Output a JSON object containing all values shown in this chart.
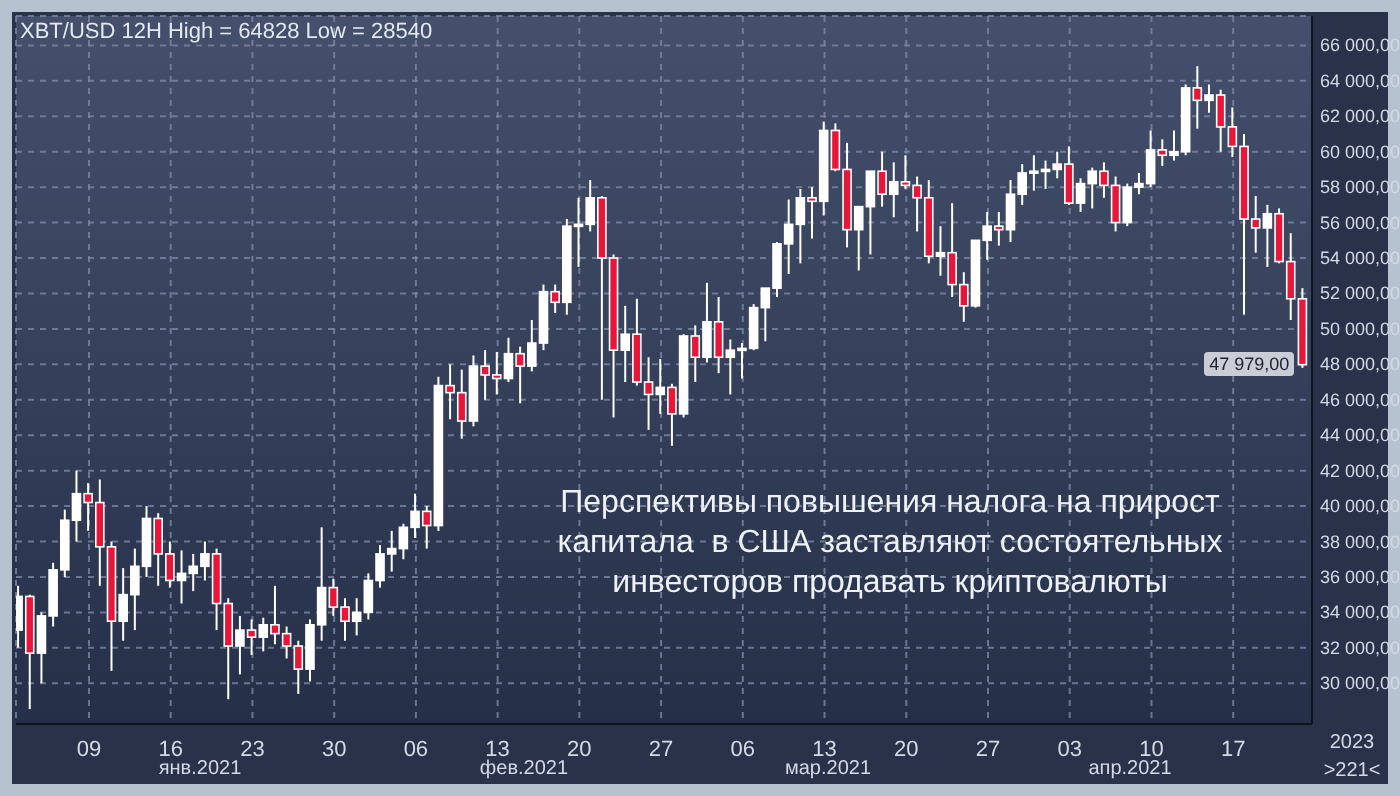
{
  "chart_data": {
    "type": "candlestick",
    "title": "XBT/USD 12H High = 64828 Low = 28540",
    "x": [
      "2021-01-03",
      "2021-01-04",
      "2021-01-05",
      "2021-01-06",
      "2021-01-07",
      "2021-01-08",
      "2021-01-09",
      "2021-01-10",
      "2021-01-11",
      "2021-01-12",
      "2021-01-13",
      "2021-01-14",
      "2021-01-15",
      "2021-01-16",
      "2021-01-17",
      "2021-01-18",
      "2021-01-19",
      "2021-01-20",
      "2021-01-21",
      "2021-01-22",
      "2021-01-23",
      "2021-01-24",
      "2021-01-25",
      "2021-01-26",
      "2021-01-27",
      "2021-01-28",
      "2021-01-29",
      "2021-01-30",
      "2021-01-31",
      "2021-02-01",
      "2021-02-02",
      "2021-02-03",
      "2021-02-04",
      "2021-02-05",
      "2021-02-06",
      "2021-02-07",
      "2021-02-08",
      "2021-02-09",
      "2021-02-10",
      "2021-02-11",
      "2021-02-12",
      "2021-02-13",
      "2021-02-14",
      "2021-02-15",
      "2021-02-16",
      "2021-02-17",
      "2021-02-18",
      "2021-02-19",
      "2021-02-20",
      "2021-02-21",
      "2021-02-22",
      "2021-02-23",
      "2021-02-24",
      "2021-02-25",
      "2021-02-26",
      "2021-02-27",
      "2021-02-28",
      "2021-03-01",
      "2021-03-02",
      "2021-03-03",
      "2021-03-04",
      "2021-03-05",
      "2021-03-06",
      "2021-03-07",
      "2021-03-08",
      "2021-03-09",
      "2021-03-10",
      "2021-03-11",
      "2021-03-12",
      "2021-03-13",
      "2021-03-14",
      "2021-03-15",
      "2021-03-16",
      "2021-03-17",
      "2021-03-18",
      "2021-03-19",
      "2021-03-20",
      "2021-03-21",
      "2021-03-22",
      "2021-03-23",
      "2021-03-24",
      "2021-03-25",
      "2021-03-26",
      "2021-03-27",
      "2021-03-28",
      "2021-03-29",
      "2021-03-30",
      "2021-03-31",
      "2021-04-01",
      "2021-04-02",
      "2021-04-03",
      "2021-04-04",
      "2021-04-05",
      "2021-04-06",
      "2021-04-07",
      "2021-04-08",
      "2021-04-09",
      "2021-04-10",
      "2021-04-11",
      "2021-04-12",
      "2021-04-13",
      "2021-04-14",
      "2021-04-15",
      "2021-04-16",
      "2021-04-17",
      "2021-04-18",
      "2021-04-19",
      "2021-04-20",
      "2021-04-21",
      "2021-04-22",
      "2021-04-23"
    ],
    "ohlc": [
      [
        33000,
        35500,
        32000,
        34900
      ],
      [
        34900,
        35000,
        28540,
        31700
      ],
      [
        31700,
        34000,
        30000,
        33800
      ],
      [
        33800,
        36800,
        33200,
        36400
      ],
      [
        36400,
        39800,
        36000,
        39200
      ],
      [
        39200,
        42000,
        38000,
        40700
      ],
      [
        40700,
        41300,
        38600,
        40200
      ],
      [
        40200,
        41500,
        35500,
        37700
      ],
      [
        37700,
        38000,
        30700,
        33500
      ],
      [
        33500,
        36500,
        32400,
        35000
      ],
      [
        35000,
        37600,
        33000,
        36600
      ],
      [
        36600,
        40000,
        36000,
        39300
      ],
      [
        39300,
        39600,
        35500,
        37300
      ],
      [
        37300,
        38000,
        35400,
        35800
      ],
      [
        35800,
        37500,
        34500,
        36200
      ],
      [
        36200,
        37300,
        35200,
        36600
      ],
      [
        36600,
        38000,
        35800,
        37300
      ],
      [
        37300,
        37600,
        33000,
        34500
      ],
      [
        34500,
        34800,
        29100,
        32100
      ],
      [
        32100,
        33800,
        30500,
        33000
      ],
      [
        33000,
        33600,
        31600,
        32600
      ],
      [
        32600,
        33700,
        31800,
        33300
      ],
      [
        33300,
        35500,
        32200,
        32800
      ],
      [
        32800,
        33200,
        31400,
        32100
      ],
      [
        32100,
        32400,
        29400,
        30800
      ],
      [
        30800,
        33600,
        30100,
        33300
      ],
      [
        33300,
        38800,
        32400,
        35400
      ],
      [
        35400,
        35900,
        33800,
        34300
      ],
      [
        34300,
        34800,
        32400,
        33500
      ],
      [
        33500,
        34800,
        32700,
        34000
      ],
      [
        34000,
        36200,
        33600,
        35800
      ],
      [
        35800,
        37800,
        35400,
        37300
      ],
      [
        37300,
        38600,
        36300,
        37600
      ],
      [
        37600,
        39000,
        37000,
        38800
      ],
      [
        38800,
        40700,
        38200,
        39700
      ],
      [
        39700,
        40000,
        37600,
        38900
      ],
      [
        38900,
        47300,
        38600,
        46800
      ],
      [
        46800,
        48000,
        44900,
        46400
      ],
      [
        46400,
        47700,
        43800,
        44800
      ],
      [
        44800,
        48500,
        44500,
        47900
      ],
      [
        47900,
        48800,
        46000,
        47400
      ],
      [
        47400,
        48700,
        46300,
        47200
      ],
      [
        47200,
        49500,
        47000,
        48600
      ],
      [
        48600,
        49000,
        45800,
        47900
      ],
      [
        47900,
        50500,
        47600,
        49200
      ],
      [
        49200,
        52500,
        48800,
        52100
      ],
      [
        52100,
        52500,
        50900,
        51500
      ],
      [
        51500,
        56200,
        50800,
        55800
      ],
      [
        55800,
        57400,
        53500,
        55900
      ],
      [
        55900,
        58400,
        55500,
        57400
      ],
      [
        57400,
        57500,
        46000,
        54000
      ],
      [
        54000,
        54200,
        45000,
        48800
      ],
      [
        48800,
        51300,
        47000,
        49700
      ],
      [
        49700,
        51700,
        46800,
        47000
      ],
      [
        47000,
        48400,
        44300,
        46300
      ],
      [
        46300,
        48300,
        45200,
        46700
      ],
      [
        46700,
        46900,
        43400,
        45200
      ],
      [
        45200,
        49700,
        45000,
        49600
      ],
      [
        49600,
        50200,
        47000,
        48400
      ],
      [
        48400,
        52600,
        48100,
        50400
      ],
      [
        50400,
        51800,
        47500,
        48400
      ],
      [
        48400,
        49400,
        46300,
        48800
      ],
      [
        48800,
        49200,
        47200,
        48900
      ],
      [
        48900,
        51400,
        48800,
        51200
      ],
      [
        51200,
        52300,
        49300,
        52300
      ],
      [
        52300,
        54900,
        51800,
        54800
      ],
      [
        54800,
        57300,
        53100,
        55900
      ],
      [
        55900,
        57900,
        53700,
        57400
      ],
      [
        57400,
        58000,
        55100,
        57200
      ],
      [
        57200,
        61700,
        56400,
        61200
      ],
      [
        61200,
        61600,
        58900,
        59000
      ],
      [
        59000,
        60500,
        54600,
        55600
      ],
      [
        55600,
        56900,
        53300,
        56900
      ],
      [
        56900,
        58900,
        54200,
        58900
      ],
      [
        58900,
        60000,
        56900,
        57600
      ],
      [
        57600,
        59400,
        56300,
        58300
      ],
      [
        58300,
        59800,
        57900,
        58100
      ],
      [
        58100,
        58600,
        55500,
        57400
      ],
      [
        57400,
        58400,
        53700,
        54100
      ],
      [
        54100,
        55800,
        53000,
        54300
      ],
      [
        54300,
        57100,
        51800,
        52500
      ],
      [
        52500,
        53200,
        50400,
        51300
      ],
      [
        51300,
        55000,
        51200,
        55000
      ],
      [
        55000,
        56600,
        53900,
        55800
      ],
      [
        55800,
        56600,
        54700,
        55600
      ],
      [
        55600,
        58400,
        54900,
        57600
      ],
      [
        57600,
        59300,
        57000,
        58800
      ],
      [
        58800,
        59800,
        57800,
        58900
      ],
      [
        58900,
        59500,
        57900,
        59000
      ],
      [
        59000,
        60000,
        58500,
        59300
      ],
      [
        59300,
        60300,
        57000,
        57100
      ],
      [
        57100,
        58500,
        56600,
        58200
      ],
      [
        58200,
        59100,
        56800,
        58900
      ],
      [
        58900,
        59400,
        57400,
        58100
      ],
      [
        58100,
        58600,
        55500,
        56000
      ],
      [
        56000,
        58200,
        55800,
        58000
      ],
      [
        58000,
        58800,
        57600,
        58200
      ],
      [
        58200,
        61200,
        58000,
        60100
      ],
      [
        60100,
        60700,
        59200,
        59800
      ],
      [
        59800,
        61200,
        59500,
        60000
      ],
      [
        60000,
        63800,
        59800,
        63600
      ],
      [
        63600,
        64828,
        61300,
        62900
      ],
      [
        62900,
        63800,
        62200,
        63200
      ],
      [
        63200,
        63500,
        60000,
        61400
      ],
      [
        61400,
        62500,
        59700,
        60300
      ],
      [
        60300,
        61000,
        50800,
        56200
      ],
      [
        56200,
        57500,
        54300,
        55700
      ],
      [
        55700,
        57000,
        53500,
        56500
      ],
      [
        56500,
        56800,
        53700,
        53800
      ],
      [
        53800,
        55400,
        50500,
        51700
      ],
      [
        51700,
        52300,
        47800,
        47979
      ]
    ],
    "colors": [
      "#ffffff",
      "#e8173a",
      "#ffffff",
      "#ffffff",
      "#ffffff",
      "#ffffff",
      "#e8173a",
      "#e8173a",
      "#e8173a",
      "#ffffff",
      "#ffffff",
      "#ffffff",
      "#e8173a",
      "#e8173a",
      "#ffffff",
      "#ffffff",
      "#ffffff",
      "#e8173a",
      "#e8173a",
      "#ffffff",
      "#e8173a",
      "#ffffff",
      "#e8173a",
      "#e8173a",
      "#e8173a",
      "#ffffff",
      "#ffffff",
      "#e8173a",
      "#e8173a",
      "#ffffff",
      "#ffffff",
      "#ffffff",
      "#ffffff",
      "#ffffff",
      "#ffffff",
      "#e8173a",
      "#ffffff",
      "#e8173a",
      "#e8173a",
      "#ffffff",
      "#e8173a",
      "#e8173a",
      "#ffffff",
      "#e8173a",
      "#ffffff",
      "#ffffff",
      "#e8173a",
      "#ffffff",
      "#ffffff",
      "#ffffff",
      "#e8173a",
      "#e8173a",
      "#ffffff",
      "#e8173a",
      "#e8173a",
      "#ffffff",
      "#e8173a",
      "#ffffff",
      "#e8173a",
      "#ffffff",
      "#e8173a",
      "#ffffff",
      "#ffffff",
      "#ffffff",
      "#ffffff",
      "#ffffff",
      "#ffffff",
      "#ffffff",
      "#e8173a",
      "#ffffff",
      "#e8173a",
      "#e8173a",
      "#ffffff",
      "#ffffff",
      "#e8173a",
      "#ffffff",
      "#e8173a",
      "#e8173a",
      "#e8173a",
      "#ffffff",
      "#e8173a",
      "#e8173a",
      "#ffffff",
      "#ffffff",
      "#e8173a",
      "#ffffff",
      "#ffffff",
      "#ffffff",
      "#ffffff",
      "#ffffff",
      "#e8173a",
      "#ffffff",
      "#ffffff",
      "#e8173a",
      "#e8173a",
      "#ffffff",
      "#ffffff",
      "#ffffff",
      "#e8173a",
      "#ffffff",
      "#ffffff",
      "#e8173a",
      "#ffffff",
      "#e8173a",
      "#e8173a",
      "#e8173a",
      "#e8173a",
      "#ffffff",
      "#e8173a",
      "#e8173a",
      "#e8173a"
    ],
    "xlim": [
      "2021-01-02T18:00",
      "2021-04-23T18:00"
    ],
    "xticks": [
      {
        "value": "2021-01-09",
        "label": "09"
      },
      {
        "value": "2021-01-16",
        "label": "16"
      },
      {
        "value": "2021-01-23",
        "label": "23"
      },
      {
        "value": "2021-01-30",
        "label": "30"
      },
      {
        "value": "2021-02-06",
        "label": "06"
      },
      {
        "value": "2021-02-13",
        "label": "13"
      },
      {
        "value": "2021-02-20",
        "label": "20"
      },
      {
        "value": "2021-02-27",
        "label": "27"
      },
      {
        "value": "2021-03-06",
        "label": "06"
      },
      {
        "value": "2021-03-13",
        "label": "13"
      },
      {
        "value": "2021-03-20",
        "label": "20"
      },
      {
        "value": "2021-03-27",
        "label": "27"
      },
      {
        "value": "2021-04-03",
        "label": "03"
      },
      {
        "value": "2021-04-10",
        "label": "10"
      },
      {
        "value": "2021-04-17",
        "label": "17"
      }
    ],
    "ylim": [
      27700,
      67660
    ],
    "yticks": [
      {
        "value": 30000,
        "label": "30 000,00"
      },
      {
        "value": 32000,
        "label": "32 000,00"
      },
      {
        "value": 34000,
        "label": "34 000,00"
      },
      {
        "value": 36000,
        "label": "36 000,00"
      },
      {
        "value": 38000,
        "label": "38 000,00"
      },
      {
        "value": 40000,
        "label": "40 000,00"
      },
      {
        "value": 42000,
        "label": "42 000,00"
      },
      {
        "value": 44000,
        "label": "44 000,00"
      },
      {
        "value": 46000,
        "label": "46 000,00"
      },
      {
        "value": 48000,
        "label": "48 000,00"
      },
      {
        "value": 50000,
        "label": "50 000,00"
      },
      {
        "value": 52000,
        "label": "52 000,00"
      },
      {
        "value": 54000,
        "label": "54 000,00"
      },
      {
        "value": 56000,
        "label": "56 000,00"
      },
      {
        "value": 58000,
        "label": "58 000,00"
      },
      {
        "value": 60000,
        "label": "60 000,00"
      },
      {
        "value": 62000,
        "label": "62 000,00"
      },
      {
        "value": 64000,
        "label": "64 000,00"
      },
      {
        "value": 66000,
        "label": "66 000,00"
      }
    ],
    "grid": true,
    "annotations": [
      "Перспективы повышения налога на прирост капитала  в США заставляют состоятельных инвесторов продавать криптовалюты",
      "янв.2021",
      "фев.2021",
      "мар.2021",
      "апр.2021",
      "2023",
      ">221<",
      {
        "text": "47 979,00",
        "x": "2021-04-23",
        "y": 47979
      }
    ]
  }
}
